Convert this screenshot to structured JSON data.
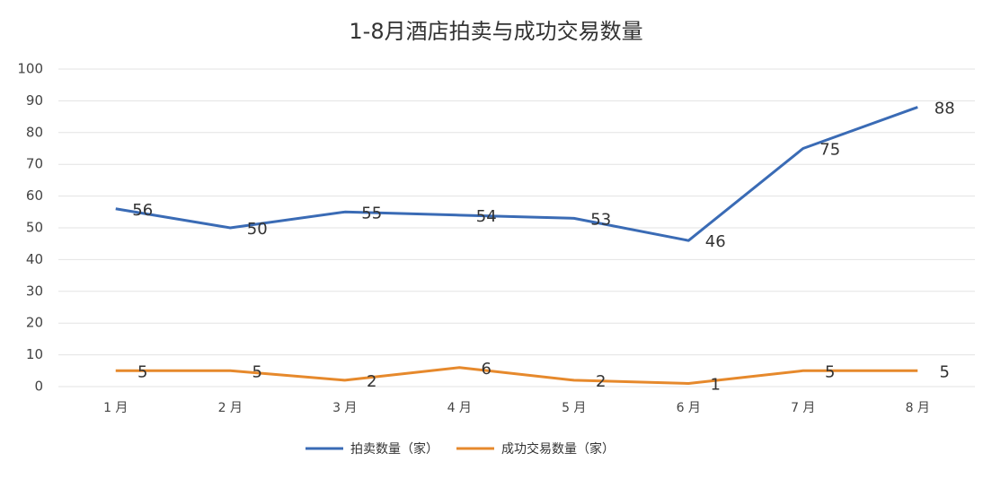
{
  "chart_data": {
    "type": "line",
    "title": "1-8月酒店拍卖与成功交易数量",
    "categories": [
      "1 月",
      "2 月",
      "3 月",
      "4 月",
      "5 月",
      "6 月",
      "7 月",
      "8 月"
    ],
    "series": [
      {
        "name": "拍卖数量（家）",
        "color": "#3a6bb5",
        "values": [
          56,
          50,
          55,
          54,
          53,
          46,
          75,
          88
        ]
      },
      {
        "name": "成功交易数量（家）",
        "color": "#e6892c",
        "values": [
          5,
          5,
          2,
          6,
          2,
          1,
          5,
          5
        ]
      }
    ],
    "ylim": [
      0,
      100
    ],
    "yticks": [
      0,
      10,
      20,
      30,
      40,
      50,
      60,
      70,
      80,
      90,
      100
    ],
    "grid": true,
    "legend": "bottom"
  }
}
